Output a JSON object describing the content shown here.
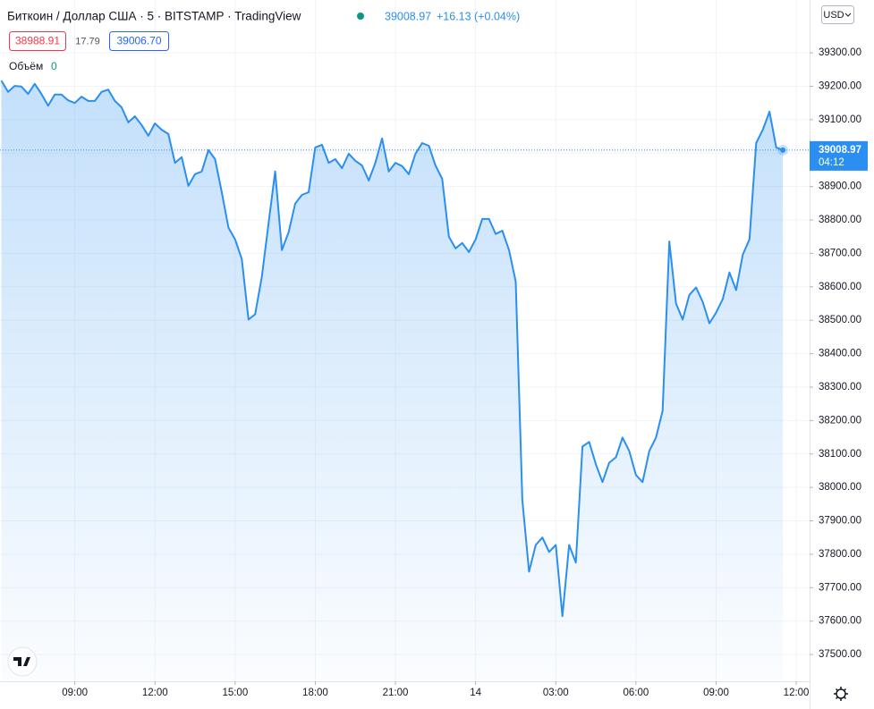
{
  "chart_data": {
    "type": "area",
    "title": "Биткоин / Доллар США · 5 · BITSTAMP · TradingView",
    "last_price": 39008.97,
    "change": "+16.13 (+0.04%)",
    "bid": "38988.91",
    "spread": "17.79",
    "ask": "39006.70",
    "volume_label": "Объём",
    "volume_value": "0",
    "currency": "USD",
    "countdown": "04:12",
    "color": "#2a8ff0",
    "grid": true,
    "xlim": [
      6.2,
      36.5
    ],
    "ylim": [
      37420,
      39458
    ],
    "xticks": [
      {
        "value": 9,
        "label": "09:00"
      },
      {
        "value": 12,
        "label": "12:00"
      },
      {
        "value": 15,
        "label": "15:00"
      },
      {
        "value": 18,
        "label": "18:00"
      },
      {
        "value": 21,
        "label": "21:00"
      },
      {
        "value": 24,
        "label": "14"
      },
      {
        "value": 27,
        "label": "03:00"
      },
      {
        "value": 30,
        "label": "06:00"
      },
      {
        "value": 33,
        "label": "09:00"
      },
      {
        "value": 36,
        "label": "12:00"
      }
    ],
    "yticks": [
      {
        "value": 37500,
        "label": "37500.00"
      },
      {
        "value": 37600,
        "label": "37600.00"
      },
      {
        "value": 37700,
        "label": "37700.00"
      },
      {
        "value": 37800,
        "label": "37800.00"
      },
      {
        "value": 37900,
        "label": "37900.00"
      },
      {
        "value": 38000,
        "label": "38000.00"
      },
      {
        "value": 38100,
        "label": "38100.00"
      },
      {
        "value": 38200,
        "label": "38200.00"
      },
      {
        "value": 38300,
        "label": "38300.00"
      },
      {
        "value": 38400,
        "label": "38400.00"
      },
      {
        "value": 38500,
        "label": "38500.00"
      },
      {
        "value": 38600,
        "label": "38600.00"
      },
      {
        "value": 38700,
        "label": "38700.00"
      },
      {
        "value": 38800,
        "label": "38800.00"
      },
      {
        "value": 38900,
        "label": "38900.00"
      },
      {
        "value": 39000,
        "label": "39000.00"
      },
      {
        "value": 39100,
        "label": "39100.00"
      },
      {
        "value": 39200,
        "label": "39200.00"
      },
      {
        "value": 39300,
        "label": "39300.00"
      }
    ],
    "x": [
      6.25,
      6.5,
      6.75,
      7,
      7.25,
      7.5,
      7.75,
      8,
      8.25,
      8.5,
      8.75,
      9,
      9.25,
      9.5,
      9.75,
      10,
      10.25,
      10.5,
      10.75,
      11,
      11.25,
      11.5,
      11.75,
      12,
      12.25,
      12.5,
      12.75,
      13,
      13.25,
      13.5,
      13.75,
      14,
      14.25,
      14.5,
      14.75,
      15,
      15.25,
      15.5,
      15.75,
      16,
      16.25,
      16.5,
      16.75,
      17,
      17.25,
      17.5,
      17.75,
      18,
      18.25,
      18.5,
      18.75,
      19,
      19.25,
      19.5,
      19.75,
      20,
      20.25,
      20.5,
      20.75,
      21,
      21.25,
      21.5,
      21.75,
      22,
      22.25,
      22.5,
      22.75,
      23,
      23.25,
      23.5,
      23.75,
      24,
      24.25,
      24.5,
      24.75,
      25,
      25.25,
      25.5,
      25.75,
      26,
      26.25,
      26.5,
      26.75,
      27,
      27.25,
      27.5,
      27.75,
      28,
      28.25,
      28.5,
      28.75,
      29,
      29.25,
      29.5,
      29.75,
      30,
      30.25,
      30.5,
      30.75,
      31,
      31.25,
      31.5,
      31.75,
      32,
      32.25,
      32.5,
      32.75,
      33,
      33.25,
      33.5,
      33.75,
      34,
      34.25,
      34.5,
      34.75,
      35,
      35.25,
      35.5
    ],
    "values": [
      39217,
      39183,
      39201,
      39199,
      39177,
      39207,
      39177,
      39142,
      39175,
      39175,
      39158,
      39150,
      39169,
      39156,
      39156,
      39183,
      39190,
      39156,
      39137,
      39092,
      39110,
      39084,
      39052,
      39089,
      39070,
      39057,
      38971,
      38988,
      38902,
      38937,
      38945,
      39009,
      38982,
      38883,
      38777,
      38742,
      38683,
      38502,
      38518,
      38630,
      38790,
      38945,
      38710,
      38763,
      38849,
      38875,
      38883,
      39017,
      39025,
      38971,
      38982,
      38955,
      38998,
      38977,
      38963,
      38918,
      38971,
      39044,
      38945,
      38971,
      38961,
      38937,
      38998,
      39030,
      39022,
      38963,
      38923,
      38750,
      38715,
      38731,
      38704,
      38742,
      38803,
      38803,
      38758,
      38768,
      38710,
      38616,
      37962,
      37748,
      37828,
      37850,
      37807,
      37828,
      37615,
      37828,
      37775,
      38122,
      38136,
      38069,
      38016,
      38074,
      38090,
      38149,
      38109,
      38037,
      38016,
      38109,
      38149,
      38229,
      38736,
      38550,
      38502,
      38576,
      38598,
      38555,
      38491,
      38523,
      38563,
      38643,
      38590,
      38696,
      38742,
      39030,
      39070,
      39124,
      39017,
      39008.97
    ]
  }
}
